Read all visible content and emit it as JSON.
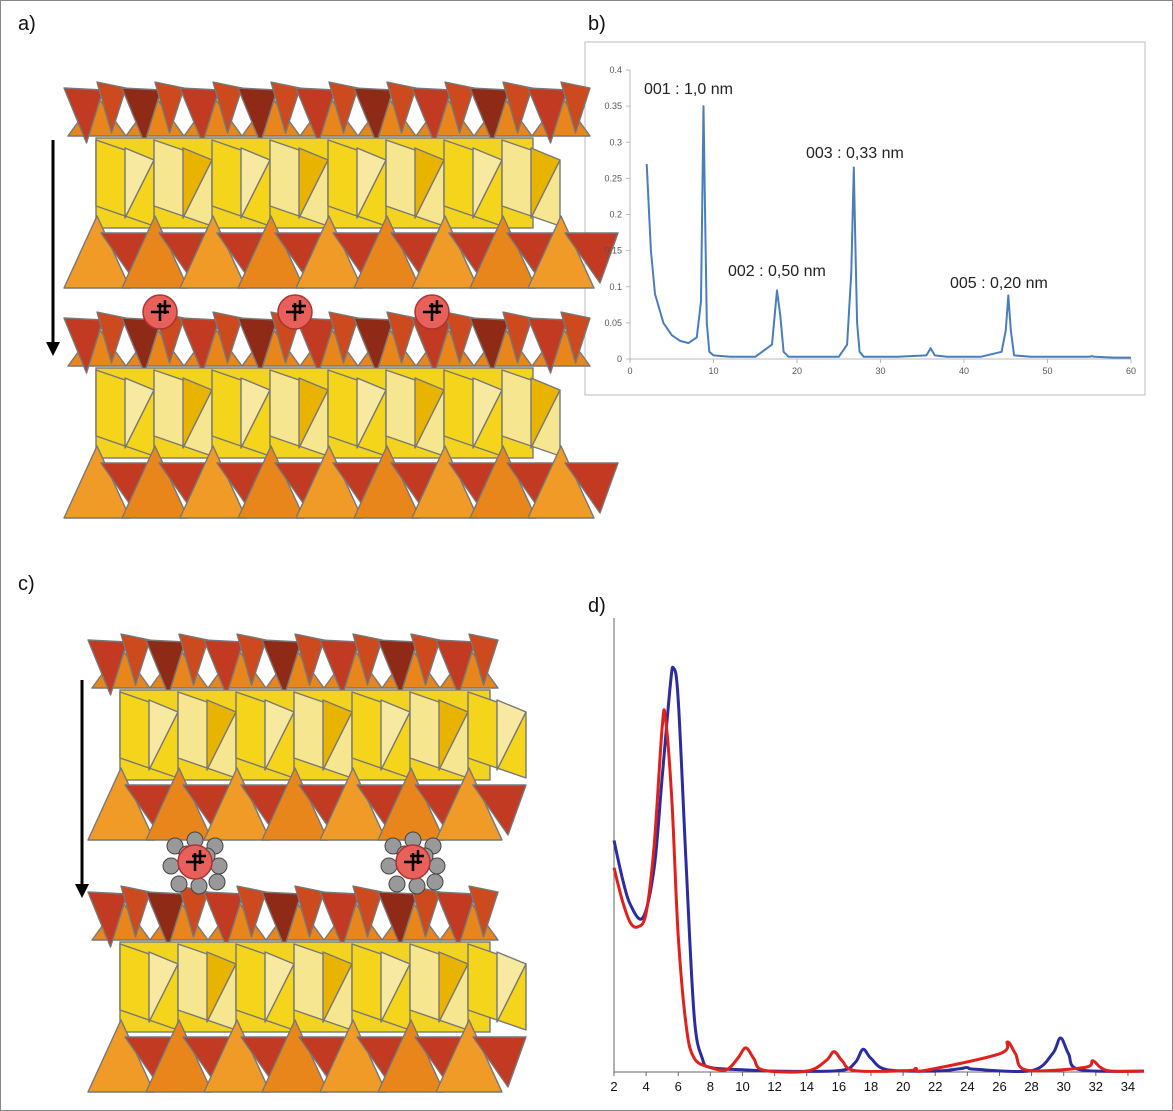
{
  "panels": {
    "a": "a)",
    "b": "b)",
    "c": "c)",
    "d": "d)"
  },
  "chart_data": [
    {
      "type": "line",
      "annotations": [
        "001 : 1,0 nm",
        "002 : 0,50 nm",
        "003 : 0,33 nm",
        "005 : 0,20 nm"
      ],
      "x": [
        2,
        2.5,
        3,
        4,
        5,
        6,
        7,
        8,
        8.5,
        8.8,
        9,
        9.2,
        9.5,
        10,
        12,
        15,
        17,
        17.6,
        18,
        18.4,
        19,
        22,
        25,
        26,
        26.5,
        26.8,
        27,
        27.2,
        27.5,
        28,
        32,
        35.5,
        36,
        36.5,
        38,
        42,
        44.5,
        45,
        45.3,
        45.6,
        46,
        48,
        52,
        55,
        55.3,
        55.6,
        58,
        60
      ],
      "series": [
        {
          "color": "#4a7ebb",
          "values": [
            0.27,
            0.15,
            0.09,
            0.05,
            0.033,
            0.025,
            0.022,
            0.03,
            0.08,
            0.35,
            0.2,
            0.05,
            0.01,
            0.005,
            0.003,
            0.003,
            0.02,
            0.095,
            0.06,
            0.01,
            0.003,
            0.003,
            0.003,
            0.02,
            0.12,
            0.265,
            0.15,
            0.05,
            0.01,
            0.003,
            0.003,
            0.005,
            0.015,
            0.005,
            0.003,
            0.003,
            0.01,
            0.04,
            0.088,
            0.04,
            0.005,
            0.003,
            0.003,
            0.003,
            0.004,
            0.003,
            0.002,
            0.002
          ]
        }
      ],
      "xlim": [
        0,
        60
      ],
      "xticks": [
        0,
        10,
        20,
        30,
        40,
        50,
        60
      ],
      "ylim": [
        0,
        0.4
      ],
      "yticks": [
        0,
        0.05,
        0.1,
        0.15,
        0.2,
        0.25,
        0.3,
        0.35,
        0.4
      ]
    },
    {
      "type": "line",
      "series": [
        {
          "color": "#2a2ca0",
          "x": [
            2,
            2.5,
            3,
            3.8,
            4.5,
            5,
            5.5,
            5.7,
            6,
            6.5,
            7,
            7.5,
            8,
            10,
            12,
            16,
            17,
            17.5,
            18,
            19,
            22,
            23.5,
            24,
            24.5,
            28,
            29.3,
            29.8,
            30.3,
            31,
            35
          ],
          "values": [
            0.51,
            0.43,
            0.37,
            0.34,
            0.45,
            0.65,
            0.85,
            0.89,
            0.82,
            0.45,
            0.12,
            0.03,
            0.01,
            0.005,
            0.002,
            0.003,
            0.02,
            0.05,
            0.03,
            0.005,
            0.002,
            0.007,
            0.01,
            0.006,
            0.003,
            0.04,
            0.075,
            0.04,
            0.005,
            0.002
          ]
        },
        {
          "color": "#e0201b",
          "x": [
            2,
            2.5,
            3,
            3.5,
            4,
            4.5,
            5,
            5.2,
            5.6,
            6,
            6.5,
            7,
            8,
            9,
            9.7,
            10.2,
            10.7,
            11.3,
            14,
            15.2,
            15.7,
            16.2,
            17,
            20.3,
            20.8,
            21.3,
            26,
            26.5,
            27,
            27.7,
            31.3,
            31.8,
            32.3,
            33,
            35
          ],
          "values": [
            0.45,
            0.38,
            0.33,
            0.32,
            0.35,
            0.5,
            0.76,
            0.78,
            0.6,
            0.3,
            0.1,
            0.03,
            0.01,
            0.005,
            0.03,
            0.053,
            0.03,
            0.004,
            0.002,
            0.025,
            0.045,
            0.025,
            0.003,
            0.003,
            0.008,
            0.003,
            0.04,
            0.066,
            0.04,
            0.004,
            0.01,
            0.025,
            0.01,
            0.002,
            0.002
          ]
        }
      ],
      "xlim": [
        2,
        35
      ],
      "xticks": [
        2,
        4,
        6,
        8,
        10,
        12,
        14,
        16,
        18,
        20,
        22,
        24,
        26,
        28,
        30,
        32,
        34
      ],
      "ylim": [
        0,
        1
      ]
    }
  ]
}
